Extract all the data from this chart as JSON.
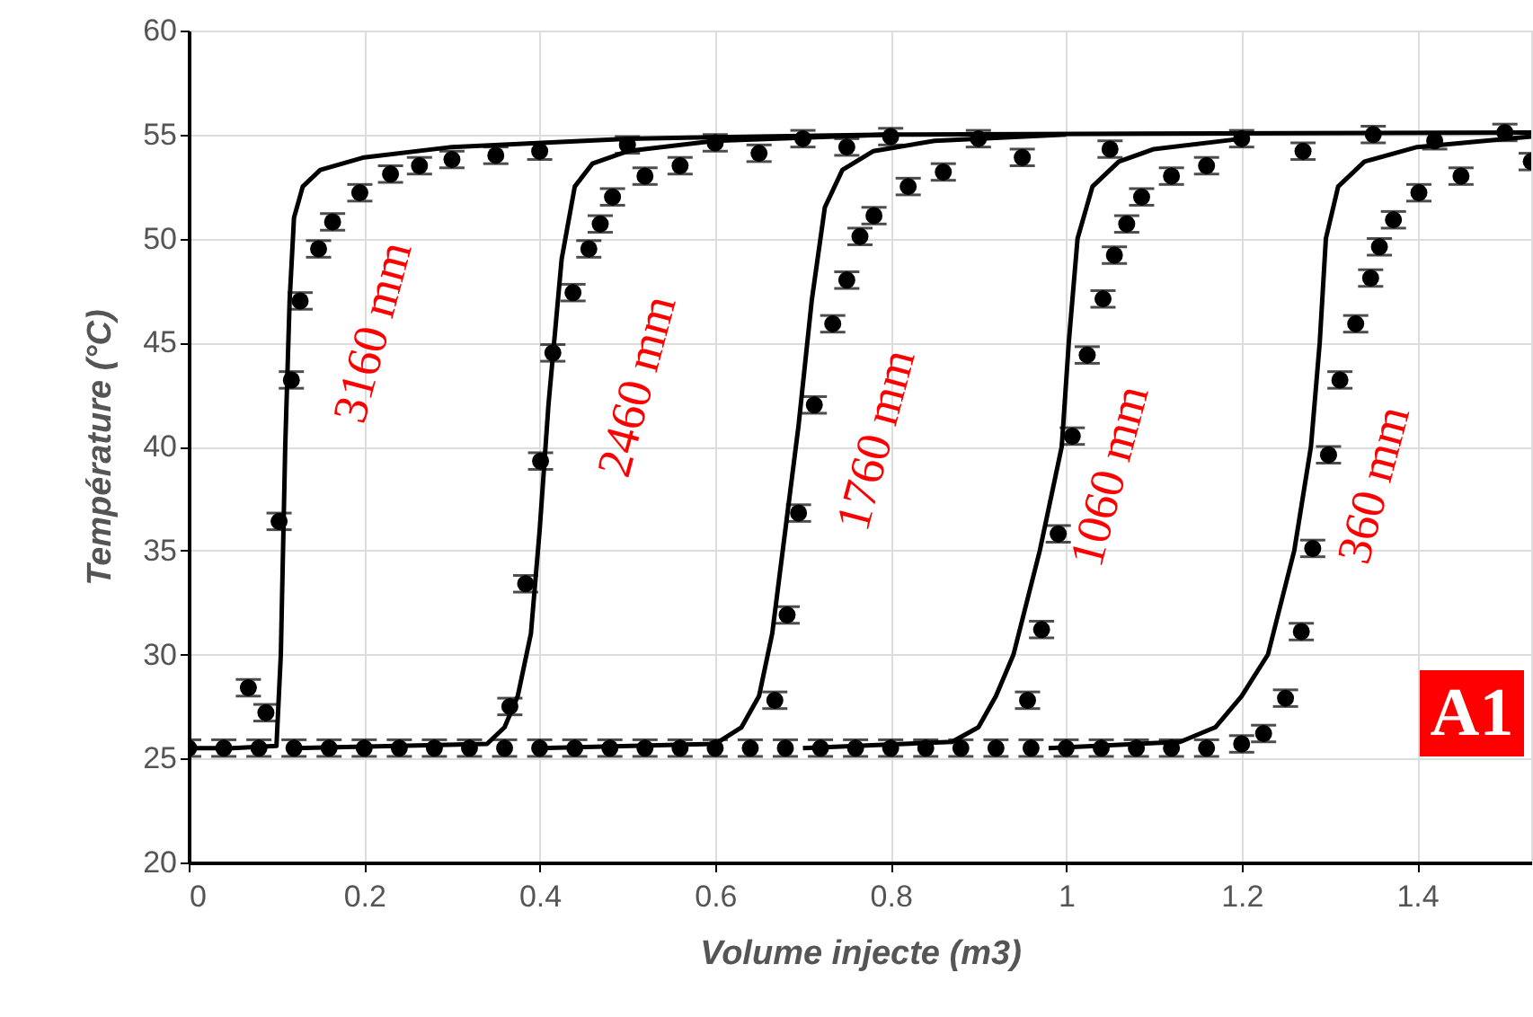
{
  "chart_data": {
    "type": "line",
    "xlabel": "Volume injecte (m3)",
    "ylabel": "Température (°C)",
    "xlim": [
      0,
      1.53
    ],
    "xticks": [
      0,
      0.2,
      0.4,
      0.6,
      0.8,
      1,
      1.2,
      1.4
    ],
    "ylim": [
      20,
      60
    ],
    "yticks": [
      20,
      25,
      30,
      35,
      40,
      45,
      50,
      55,
      60
    ],
    "grid": true,
    "series": [
      {
        "color": "#000000",
        "x": [
          0,
          0.05,
          0.1,
          0.105,
          0.11,
          0.115,
          0.12,
          0.13,
          0.15,
          0.2,
          0.3,
          0.5,
          0.8,
          1.53
        ],
        "values": [
          25.5,
          25.5,
          25.6,
          30,
          40,
          47,
          51,
          52.5,
          53.3,
          53.9,
          54.4,
          54.8,
          55,
          55.1
        ]
      },
      {
        "color": "#000000",
        "x": [
          0.12,
          0.34,
          0.36,
          0.375,
          0.39,
          0.4,
          0.41,
          0.425,
          0.44,
          0.46,
          0.5,
          0.6,
          0.8
        ],
        "values": [
          25.5,
          25.7,
          26.5,
          28,
          31,
          36,
          42,
          49,
          52.5,
          53.6,
          54.2,
          54.7,
          55
        ]
      },
      {
        "color": "#000000",
        "x": [
          0.4,
          0.6,
          0.63,
          0.65,
          0.665,
          0.68,
          0.695,
          0.71,
          0.725,
          0.745,
          0.78,
          0.85,
          1.0
        ],
        "values": [
          25.5,
          25.7,
          26.5,
          28,
          31,
          36,
          41,
          47,
          51.5,
          53.3,
          54.2,
          54.7,
          55
        ]
      },
      {
        "color": "#000000",
        "x": [
          0.7,
          0.87,
          0.9,
          0.92,
          0.94,
          0.97,
          0.995,
          1.003,
          1.013,
          1.03,
          1.06,
          1.1,
          1.2
        ],
        "values": [
          25.5,
          25.8,
          26.5,
          28,
          30,
          35,
          40,
          45,
          50,
          52.5,
          53.7,
          54.3,
          54.8
        ]
      },
      {
        "color": "#000000",
        "x": [
          0.98,
          1.13,
          1.17,
          1.2,
          1.23,
          1.26,
          1.279,
          1.289,
          1.296,
          1.31,
          1.34,
          1.4,
          1.53
        ],
        "values": [
          25.5,
          25.8,
          26.5,
          28,
          30,
          35,
          40,
          45,
          50,
          52.5,
          53.7,
          54.4,
          54.9
        ]
      },
      {
        "type": "scatter",
        "color": "#000000",
        "marker": "circle",
        "x": [
          0.068,
          0.088,
          0.103,
          0.117,
          0.127,
          0.148,
          0.164,
          0.195,
          0.23,
          0.263,
          0.3,
          0.35,
          0.4,
          0.5,
          0.6,
          0.7,
          0.8
        ],
        "values": [
          28.4,
          27.2,
          36.4,
          43.2,
          47.0,
          49.5,
          50.8,
          52.2,
          53.1,
          53.5,
          53.8,
          54.0,
          54.2,
          54.5,
          54.6,
          54.8,
          54.9
        ],
        "errors": [
          0.4,
          0.4,
          0.4,
          0.4,
          0.4,
          0.4,
          0.4,
          0.4,
          0.4,
          0.4,
          0.4,
          0.4,
          0.4,
          0.4,
          0.4,
          0.4,
          0.4
        ]
      },
      {
        "type": "scatter",
        "color": "#000000",
        "marker": "circle",
        "x": [
          0.366,
          0.384,
          0.401,
          0.415,
          0.438,
          0.456,
          0.469,
          0.483,
          0.52,
          0.56,
          0.65,
          0.75,
          0.9
        ],
        "values": [
          27.5,
          33.4,
          39.3,
          44.5,
          47.4,
          49.5,
          50.7,
          52.0,
          53.0,
          53.5,
          54.1,
          54.4,
          54.8
        ],
        "errors": [
          0.4,
          0.4,
          0.4,
          0.4,
          0.4,
          0.4,
          0.4,
          0.4,
          0.4,
          0.4,
          0.4,
          0.4,
          0.4
        ]
      },
      {
        "type": "scatter",
        "color": "#000000",
        "marker": "circle",
        "x": [
          0.668,
          0.682,
          0.695,
          0.713,
          0.734,
          0.75,
          0.765,
          0.781,
          0.82,
          0.86,
          0.95,
          1.05,
          1.2,
          1.35,
          1.5
        ],
        "values": [
          27.8,
          31.9,
          36.8,
          42.0,
          45.9,
          48.0,
          50.1,
          51.1,
          52.5,
          53.2,
          53.9,
          54.3,
          54.8,
          55.0,
          55.1
        ],
        "errors": [
          0.4,
          0.4,
          0.4,
          0.4,
          0.4,
          0.4,
          0.4,
          0.4,
          0.4,
          0.4,
          0.4,
          0.4,
          0.4,
          0.4,
          0.4
        ]
      },
      {
        "type": "scatter",
        "color": "#000000",
        "marker": "circle",
        "x": [
          0.956,
          0.972,
          0.991,
          1.007,
          1.024,
          1.042,
          1.055,
          1.069,
          1.086,
          1.12,
          1.16,
          1.27,
          1.42
        ],
        "values": [
          27.8,
          31.2,
          35.8,
          40.5,
          44.4,
          47.1,
          49.2,
          50.7,
          52.0,
          53.0,
          53.5,
          54.2,
          54.7
        ],
        "errors": [
          0.4,
          0.4,
          0.4,
          0.4,
          0.4,
          0.4,
          0.4,
          0.4,
          0.4,
          0.4,
          0.4,
          0.4,
          0.4
        ]
      },
      {
        "type": "scatter",
        "color": "#000000",
        "marker": "circle",
        "x": [
          0,
          0.04,
          0.08,
          0.12,
          0.16,
          0.2,
          0.24,
          0.28,
          0.32,
          0.36,
          0.4,
          0.44,
          0.48,
          0.52,
          0.56,
          0.6,
          0.64,
          0.68,
          0.72,
          0.76,
          0.8,
          0.84,
          0.88,
          0.92,
          0.96,
          1.0,
          1.04,
          1.08,
          1.12,
          1.16,
          1.2,
          1.225,
          1.25,
          1.268,
          1.281,
          1.299,
          1.312,
          1.33,
          1.347,
          1.357,
          1.373,
          1.402,
          1.45,
          1.53
        ],
        "values": [
          25.5,
          25.5,
          25.5,
          25.5,
          25.5,
          25.5,
          25.5,
          25.5,
          25.5,
          25.5,
          25.5,
          25.5,
          25.5,
          25.5,
          25.5,
          25.5,
          25.5,
          25.5,
          25.5,
          25.5,
          25.5,
          25.5,
          25.5,
          25.5,
          25.5,
          25.5,
          25.5,
          25.5,
          25.5,
          25.5,
          25.7,
          26.2,
          27.9,
          31.1,
          35.1,
          39.6,
          43.2,
          45.9,
          48.1,
          49.6,
          50.9,
          52.2,
          53.0,
          53.7
        ],
        "errors": [
          0.4,
          0.4,
          0.4,
          0.4,
          0.4,
          0.4,
          0.4,
          0.4,
          0.4,
          0.4,
          0.4,
          0.4,
          0.4,
          0.4,
          0.4,
          0.4,
          0.4,
          0.4,
          0.4,
          0.4,
          0.4,
          0.4,
          0.4,
          0.4,
          0.4,
          0.4,
          0.4,
          0.4,
          0.4,
          0.4,
          0.4,
          0.4,
          0.4,
          0.4,
          0.4,
          0.4,
          0.4,
          0.4,
          0.4,
          0.4,
          0.4,
          0.4,
          0.4,
          0.4
        ]
      }
    ],
    "annotations": [
      "3160 mm",
      "2460 mm",
      "1760 mm",
      "1060 mm",
      "360 mm",
      "A1"
    ]
  }
}
